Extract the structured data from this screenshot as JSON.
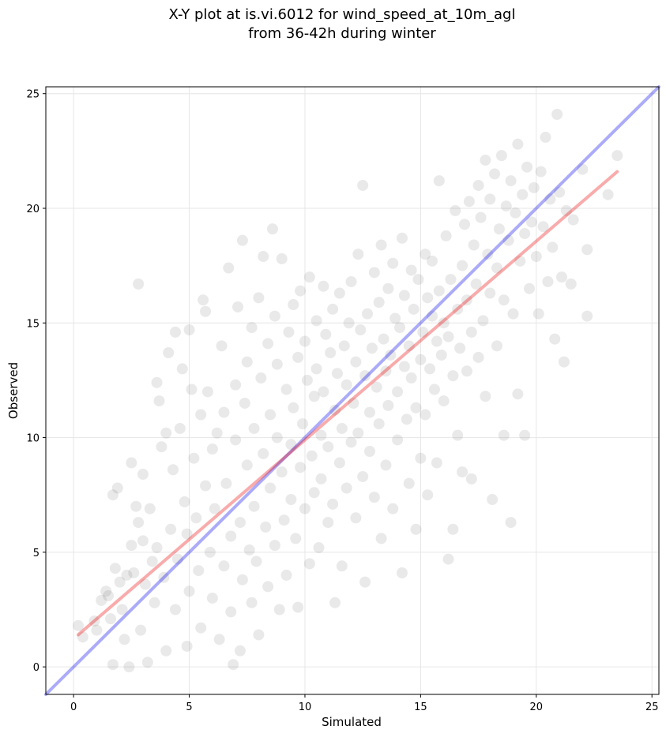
{
  "chart_data": {
    "type": "scatter",
    "title_lines": [
      "X-Y plot at is.vi.6012 for wind_speed_at_10m_agl",
      "from 36-42h during winter"
    ],
    "xlabel": "Simulated",
    "ylabel": "Observed",
    "xlim": [
      -1.2,
      25.3
    ],
    "ylim": [
      -1.2,
      25.3
    ],
    "xticks": [
      0,
      5,
      10,
      15,
      20,
      25
    ],
    "yticks": [
      0,
      5,
      10,
      15,
      20,
      25
    ],
    "grid": true,
    "point_color": "#555555",
    "point_alpha": 0.13,
    "lines": [
      {
        "x": [
          -1.2,
          25.3
        ],
        "y": [
          -1.2,
          25.3
        ],
        "color": "#0000ee",
        "alpha": 0.33
      },
      {
        "x": [
          0.2,
          23.5
        ],
        "y": [
          1.4,
          21.6
        ],
        "color": "#ee0000",
        "alpha": 0.33
      }
    ],
    "points": [
      [
        0.2,
        1.8
      ],
      [
        0.4,
        1.3
      ],
      [
        0.9,
        2.0
      ],
      [
        1.0,
        1.6
      ],
      [
        1.2,
        2.9
      ],
      [
        1.4,
        3.3
      ],
      [
        1.5,
        3.1
      ],
      [
        1.6,
        2.1
      ],
      [
        1.7,
        7.5
      ],
      [
        1.7,
        0.1
      ],
      [
        1.8,
        4.3
      ],
      [
        1.9,
        7.8
      ],
      [
        2.0,
        3.7
      ],
      [
        2.1,
        2.5
      ],
      [
        2.2,
        1.2
      ],
      [
        2.3,
        4.0
      ],
      [
        2.4,
        0.0
      ],
      [
        2.5,
        8.9
      ],
      [
        2.5,
        5.3
      ],
      [
        2.6,
        4.1
      ],
      [
        2.7,
        7.0
      ],
      [
        2.8,
        6.3
      ],
      [
        2.8,
        16.7
      ],
      [
        2.9,
        1.6
      ],
      [
        3.0,
        8.4
      ],
      [
        3.0,
        5.5
      ],
      [
        3.1,
        3.6
      ],
      [
        3.2,
        0.2
      ],
      [
        3.3,
        6.9
      ],
      [
        3.4,
        4.6
      ],
      [
        3.5,
        2.8
      ],
      [
        3.6,
        12.4
      ],
      [
        3.6,
        5.2
      ],
      [
        3.7,
        11.6
      ],
      [
        3.8,
        9.6
      ],
      [
        3.9,
        3.9
      ],
      [
        4.0,
        10.2
      ],
      [
        4.0,
        0.7
      ],
      [
        4.1,
        13.7
      ],
      [
        4.2,
        6.0
      ],
      [
        4.3,
        8.6
      ],
      [
        4.4,
        14.6
      ],
      [
        4.4,
        2.5
      ],
      [
        4.5,
        4.7
      ],
      [
        4.6,
        10.4
      ],
      [
        4.7,
        13.0
      ],
      [
        4.8,
        7.2
      ],
      [
        4.9,
        0.9
      ],
      [
        4.9,
        5.8
      ],
      [
        5.0,
        14.7
      ],
      [
        5.0,
        3.3
      ],
      [
        5.1,
        12.1
      ],
      [
        5.2,
        9.1
      ],
      [
        5.3,
        6.5
      ],
      [
        5.4,
        4.2
      ],
      [
        5.5,
        11.0
      ],
      [
        5.5,
        1.7
      ],
      [
        5.6,
        16.0
      ],
      [
        5.7,
        15.5
      ],
      [
        5.7,
        7.9
      ],
      [
        5.8,
        12.0
      ],
      [
        5.9,
        5.0
      ],
      [
        6.0,
        3.0
      ],
      [
        6.0,
        9.5
      ],
      [
        6.1,
        6.9
      ],
      [
        6.2,
        10.2
      ],
      [
        6.3,
        1.2
      ],
      [
        6.4,
        14.0
      ],
      [
        6.5,
        11.1
      ],
      [
        6.5,
        4.4
      ],
      [
        6.6,
        8.0
      ],
      [
        6.7,
        17.4
      ],
      [
        6.8,
        5.7
      ],
      [
        6.8,
        2.4
      ],
      [
        6.9,
        0.1
      ],
      [
        7.0,
        12.3
      ],
      [
        7.0,
        9.9
      ],
      [
        7.1,
        15.7
      ],
      [
        7.2,
        0.7
      ],
      [
        7.2,
        6.3
      ],
      [
        7.3,
        18.6
      ],
      [
        7.3,
        3.8
      ],
      [
        7.4,
        11.5
      ],
      [
        7.5,
        8.8
      ],
      [
        7.5,
        13.3
      ],
      [
        7.6,
        5.1
      ],
      [
        7.7,
        2.8
      ],
      [
        7.7,
        14.8
      ],
      [
        7.8,
        10.4
      ],
      [
        7.8,
        7.0
      ],
      [
        7.9,
        4.6
      ],
      [
        8.0,
        16.1
      ],
      [
        8.0,
        1.4
      ],
      [
        8.1,
        12.6
      ],
      [
        8.2,
        9.3
      ],
      [
        8.2,
        17.9
      ],
      [
        8.3,
        6.1
      ],
      [
        8.4,
        14.1
      ],
      [
        8.4,
        3.5
      ],
      [
        8.5,
        11.0
      ],
      [
        8.5,
        7.8
      ],
      [
        8.6,
        19.1
      ],
      [
        8.7,
        5.3
      ],
      [
        8.7,
        15.3
      ],
      [
        8.8,
        13.2
      ],
      [
        8.8,
        10.0
      ],
      [
        8.9,
        2.5
      ],
      [
        9.0,
        8.5
      ],
      [
        9.0,
        17.8
      ],
      [
        9.1,
        6.4
      ],
      [
        9.2,
        12.1
      ],
      [
        9.2,
        4.0
      ],
      [
        9.3,
        14.6
      ],
      [
        9.4,
        9.7
      ],
      [
        9.4,
        7.3
      ],
      [
        9.5,
        15.8
      ],
      [
        9.5,
        11.3
      ],
      [
        9.6,
        5.6
      ],
      [
        9.7,
        13.5
      ],
      [
        9.7,
        2.6
      ],
      [
        9.8,
        16.4
      ],
      [
        9.8,
        8.7
      ],
      [
        9.9,
        10.6
      ],
      [
        10.0,
        6.9
      ],
      [
        10.0,
        14.2
      ],
      [
        10.1,
        12.5
      ],
      [
        10.2,
        4.5
      ],
      [
        10.2,
        17.0
      ],
      [
        10.3,
        9.2
      ],
      [
        10.4,
        11.8
      ],
      [
        10.4,
        7.6
      ],
      [
        10.5,
        15.1
      ],
      [
        10.5,
        13.0
      ],
      [
        10.6,
        5.2
      ],
      [
        10.7,
        10.1
      ],
      [
        10.7,
        8.2
      ],
      [
        10.8,
        16.6
      ],
      [
        10.8,
        12.0
      ],
      [
        10.9,
        14.5
      ],
      [
        11.0,
        6.3
      ],
      [
        11.0,
        9.6
      ],
      [
        11.1,
        13.7
      ],
      [
        11.2,
        7.1
      ],
      [
        11.2,
        15.6
      ],
      [
        11.3,
        11.2
      ],
      [
        11.3,
        2.8
      ],
      [
        11.4,
        12.8
      ],
      [
        11.5,
        8.9
      ],
      [
        11.5,
        16.3
      ],
      [
        11.6,
        10.4
      ],
      [
        11.6,
        4.4
      ],
      [
        11.7,
        14.0
      ],
      [
        11.8,
        12.3
      ],
      [
        11.8,
        7.8
      ],
      [
        11.9,
        15.0
      ],
      [
        12.0,
        9.8
      ],
      [
        12.0,
        16.8
      ],
      [
        12.1,
        11.5
      ],
      [
        12.2,
        13.3
      ],
      [
        12.2,
        6.5
      ],
      [
        12.3,
        18.0
      ],
      [
        12.3,
        10.2
      ],
      [
        12.4,
        14.7
      ],
      [
        12.5,
        8.3
      ],
      [
        12.5,
        21.0
      ],
      [
        12.6,
        12.7
      ],
      [
        12.6,
        3.7
      ],
      [
        12.7,
        15.4
      ],
      [
        12.8,
        11.1
      ],
      [
        12.8,
        9.4
      ],
      [
        12.9,
        13.9
      ],
      [
        13.0,
        17.2
      ],
      [
        13.0,
        7.4
      ],
      [
        13.1,
        12.2
      ],
      [
        13.2,
        15.9
      ],
      [
        13.2,
        10.6
      ],
      [
        13.3,
        18.4
      ],
      [
        13.3,
        5.6
      ],
      [
        13.4,
        14.3
      ],
      [
        13.5,
        12.9
      ],
      [
        13.5,
        8.8
      ],
      [
        13.6,
        16.5
      ],
      [
        13.6,
        11.4
      ],
      [
        13.7,
        13.6
      ],
      [
        13.8,
        17.6
      ],
      [
        13.8,
        6.9
      ],
      [
        13.9,
        15.2
      ],
      [
        14.0,
        12.0
      ],
      [
        14.0,
        9.9
      ],
      [
        14.1,
        14.8
      ],
      [
        14.2,
        18.7
      ],
      [
        14.2,
        4.1
      ],
      [
        14.3,
        13.1
      ],
      [
        14.3,
        16.2
      ],
      [
        14.4,
        10.8
      ],
      [
        14.5,
        14.0
      ],
      [
        14.5,
        8.0
      ],
      [
        14.6,
        17.3
      ],
      [
        14.6,
        12.6
      ],
      [
        14.7,
        15.6
      ],
      [
        14.8,
        11.3
      ],
      [
        14.8,
        6.0
      ],
      [
        14.9,
        16.9
      ],
      [
        15.0,
        13.4
      ],
      [
        15.0,
        9.1
      ],
      [
        15.1,
        14.6
      ],
      [
        15.2,
        18.0
      ],
      [
        15.2,
        11.0
      ],
      [
        15.3,
        16.1
      ],
      [
        15.3,
        7.5
      ],
      [
        15.4,
        13.0
      ],
      [
        15.5,
        15.3
      ],
      [
        15.5,
        17.7
      ],
      [
        15.6,
        12.1
      ],
      [
        15.7,
        14.2
      ],
      [
        15.7,
        8.9
      ],
      [
        15.8,
        21.2
      ],
      [
        15.8,
        16.4
      ],
      [
        15.9,
        13.6
      ],
      [
        16.0,
        15.0
      ],
      [
        16.0,
        11.6
      ],
      [
        16.1,
        18.8
      ],
      [
        16.2,
        14.4
      ],
      [
        16.2,
        4.7
      ],
      [
        16.3,
        16.9
      ],
      [
        16.4,
        12.7
      ],
      [
        16.4,
        6.0
      ],
      [
        16.5,
        19.9
      ],
      [
        16.6,
        15.6
      ],
      [
        16.6,
        10.1
      ],
      [
        16.7,
        13.9
      ],
      [
        16.8,
        17.5
      ],
      [
        16.8,
        8.5
      ],
      [
        16.9,
        19.3
      ],
      [
        17.0,
        16.0
      ],
      [
        17.0,
        12.9
      ],
      [
        17.1,
        20.3
      ],
      [
        17.2,
        14.6
      ],
      [
        17.2,
        8.2
      ],
      [
        17.3,
        18.4
      ],
      [
        17.4,
        16.7
      ],
      [
        17.5,
        21.0
      ],
      [
        17.5,
        13.5
      ],
      [
        17.6,
        19.6
      ],
      [
        17.7,
        15.1
      ],
      [
        17.8,
        22.1
      ],
      [
        17.8,
        11.8
      ],
      [
        17.9,
        18.0
      ],
      [
        18.0,
        16.3
      ],
      [
        18.0,
        20.4
      ],
      [
        18.1,
        7.3
      ],
      [
        18.2,
        21.5
      ],
      [
        18.3,
        17.4
      ],
      [
        18.3,
        14.0
      ],
      [
        18.4,
        19.1
      ],
      [
        18.5,
        22.3
      ],
      [
        18.6,
        16.0
      ],
      [
        18.6,
        10.1
      ],
      [
        18.7,
        20.1
      ],
      [
        18.8,
        18.6
      ],
      [
        18.9,
        21.2
      ],
      [
        18.9,
        6.3
      ],
      [
        19.0,
        15.4
      ],
      [
        19.1,
        19.8
      ],
      [
        19.2,
        22.8
      ],
      [
        19.2,
        11.9
      ],
      [
        19.3,
        17.7
      ],
      [
        19.4,
        20.6
      ],
      [
        19.5,
        18.9
      ],
      [
        19.5,
        10.1
      ],
      [
        19.6,
        21.8
      ],
      [
        19.7,
        16.5
      ],
      [
        19.8,
        19.4
      ],
      [
        19.9,
        20.9
      ],
      [
        20.0,
        17.9
      ],
      [
        20.1,
        15.4
      ],
      [
        20.2,
        21.6
      ],
      [
        20.3,
        19.2
      ],
      [
        20.4,
        23.1
      ],
      [
        20.5,
        16.8
      ],
      [
        20.6,
        20.4
      ],
      [
        20.7,
        18.3
      ],
      [
        20.8,
        14.3
      ],
      [
        20.9,
        24.1
      ],
      [
        21.0,
        20.7
      ],
      [
        21.1,
        17.0
      ],
      [
        21.2,
        13.3
      ],
      [
        21.3,
        19.9
      ],
      [
        21.5,
        16.7
      ],
      [
        21.6,
        19.5
      ],
      [
        22.0,
        21.7
      ],
      [
        22.2,
        18.2
      ],
      [
        22.2,
        15.3
      ],
      [
        23.1,
        20.6
      ],
      [
        23.5,
        22.3
      ]
    ]
  }
}
